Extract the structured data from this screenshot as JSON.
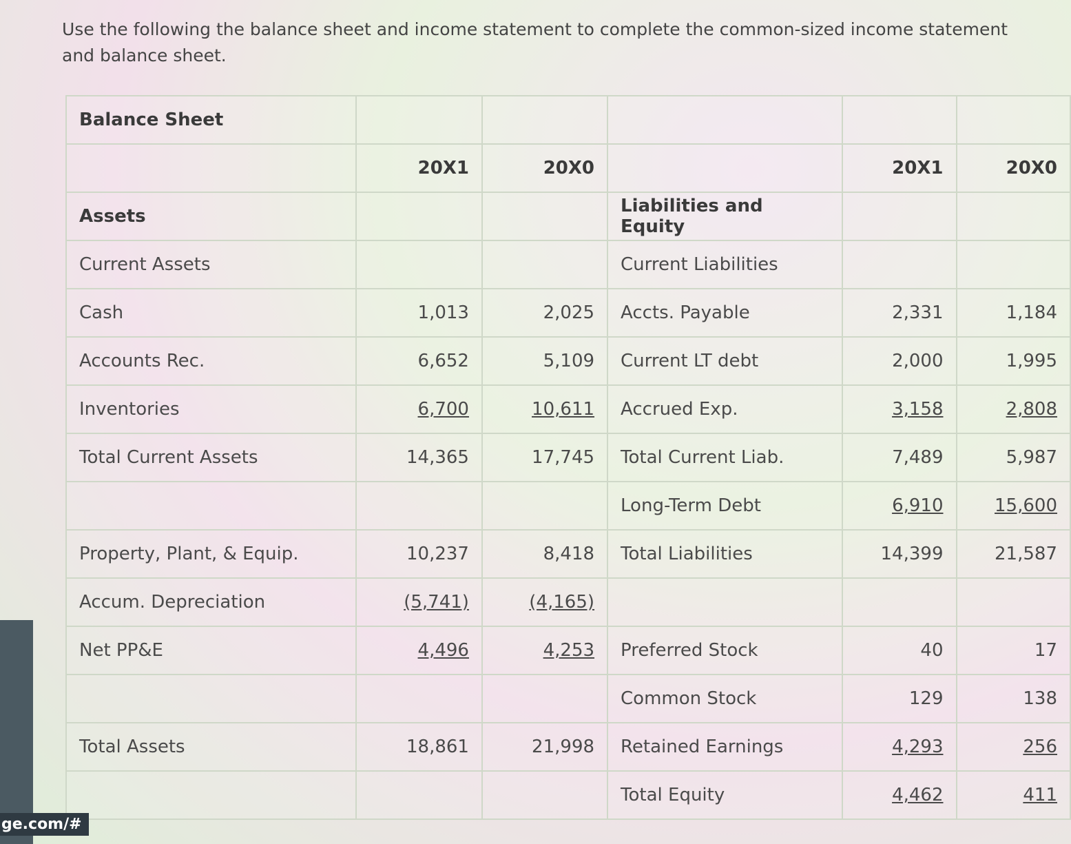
{
  "prompt": "Use the following the balance sheet and income statement to complete the common-sized income statement and balance sheet.",
  "url_fragment": "ge.com/#",
  "table": {
    "rows": [
      [
        "Balance Sheet",
        null,
        null,
        null,
        null,
        null
      ],
      [
        null,
        "20X1",
        "20X0",
        null,
        "20X1",
        "20X0"
      ],
      [
        "Assets",
        null,
        null,
        "Liabilities and Equity",
        null,
        null
      ],
      [
        "Current Assets",
        null,
        null,
        "Current Liabilities",
        null,
        null
      ],
      [
        "Cash",
        "1,013",
        "2,025",
        "Accts. Payable",
        "2,331",
        "1,184"
      ],
      [
        "Accounts Rec.",
        "6,652",
        "5,109",
        "Current LT debt",
        "2,000",
        "1,995"
      ],
      [
        "Inventories",
        "6,700",
        "10,611",
        "Accrued Exp.",
        "3,158",
        "2,808"
      ],
      [
        "Total Current Assets",
        "14,365",
        "17,745",
        "Total Current Liab.",
        "7,489",
        "5,987"
      ],
      [
        null,
        null,
        null,
        "Long-Term Debt",
        "6,910",
        "15,600"
      ],
      [
        "Property, Plant, & Equip.",
        "10,237",
        "8,418",
        "Total Liabilities",
        "14,399",
        "21,587"
      ],
      [
        "Accum. Depreciation",
        "(5,741)",
        "(4,165)",
        null,
        null,
        null
      ],
      [
        "Net PP&E",
        "4,496",
        "4,253",
        "Preferred Stock",
        "40",
        "17"
      ],
      [
        null,
        null,
        null,
        "Common Stock",
        "129",
        "138"
      ],
      [
        "Total Assets",
        "18,861",
        "21,998",
        "Retained Earnings",
        "4,293",
        "256"
      ],
      [
        null,
        null,
        null,
        "Total Equity",
        "4,462",
        "411"
      ]
    ]
  }
}
